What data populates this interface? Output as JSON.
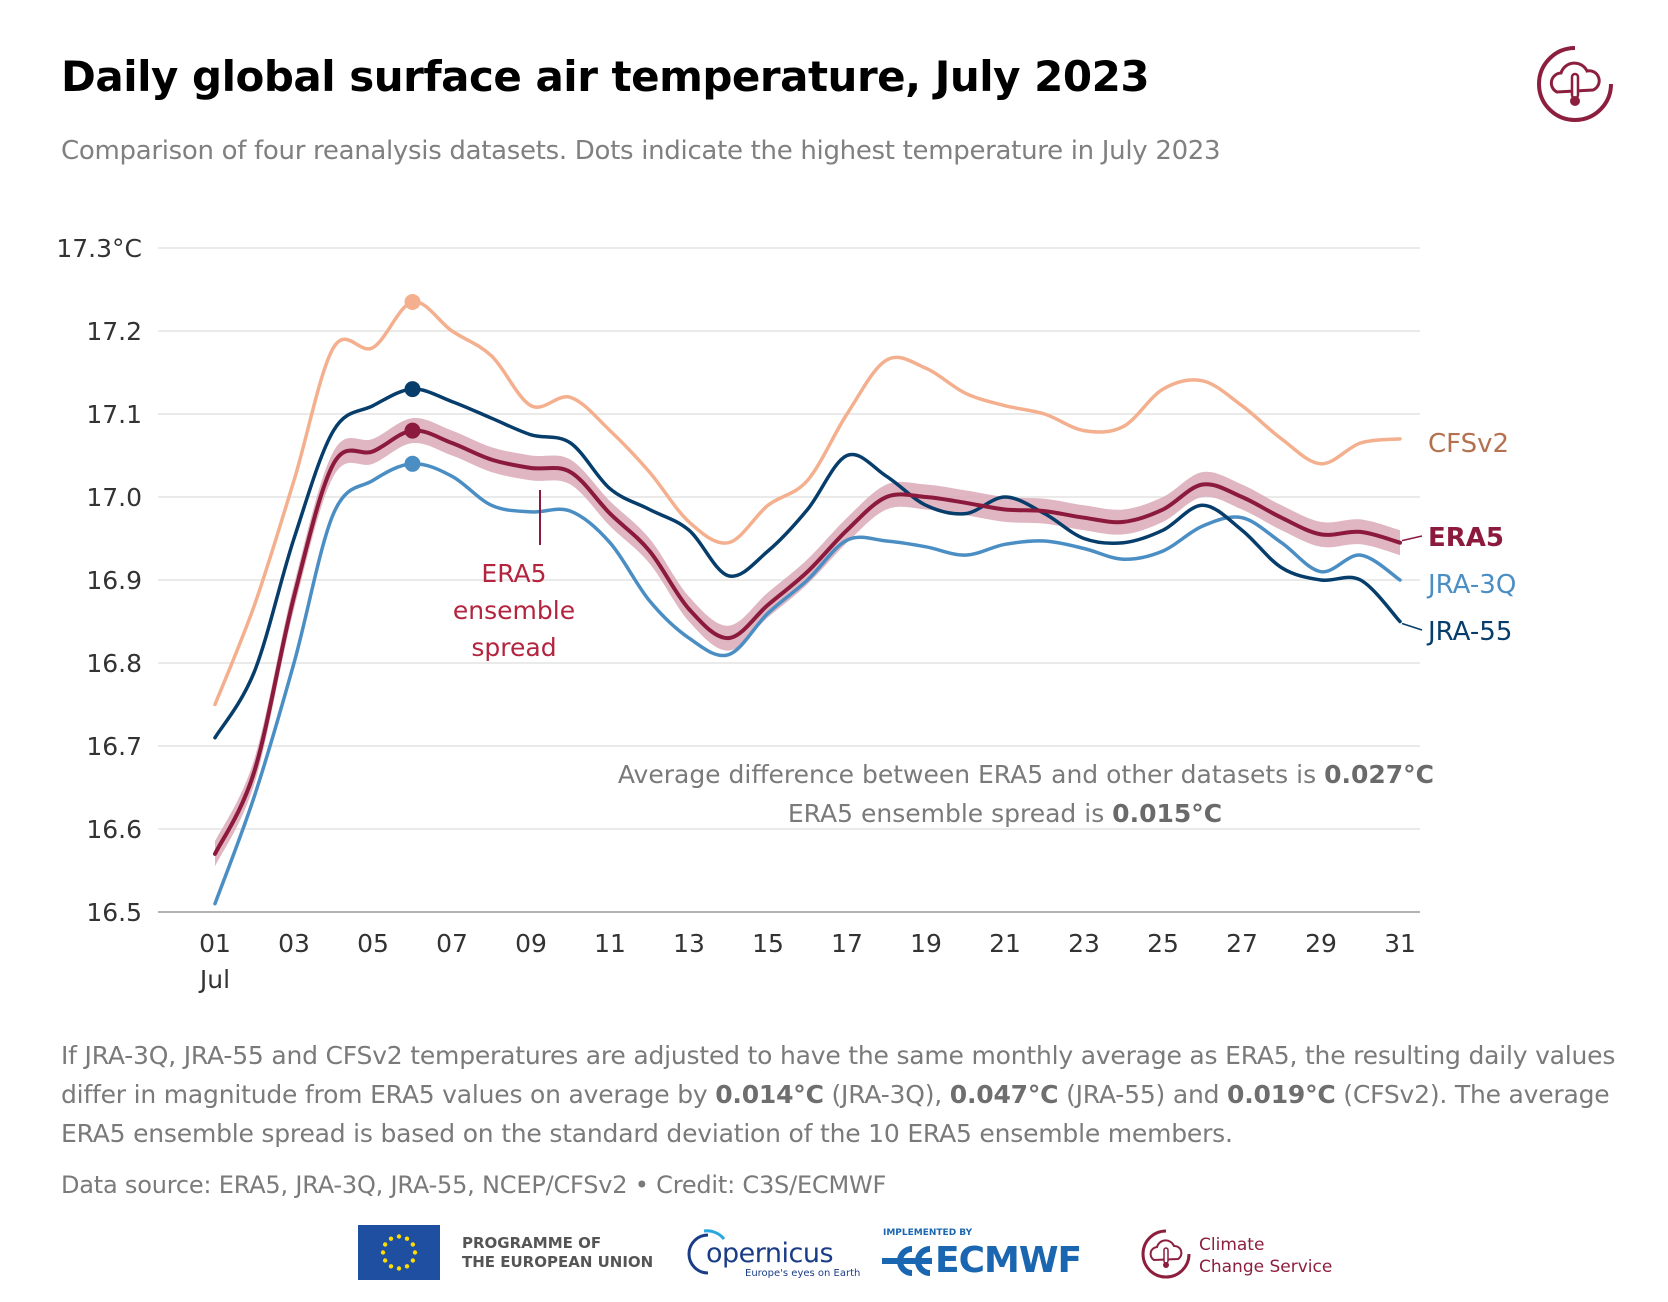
{
  "title": "Daily global surface air temperature, July 2023",
  "subtitle": "Comparison of four reanalysis datasets. Dots indicate the highest temperature in July 2023",
  "annotation": {
    "ensemble_label": [
      "ERA5",
      "ensemble",
      "spread"
    ],
    "avg_diff_prefix": "Average difference between ERA5 and other datasets is ",
    "avg_diff_value": "0.027°C",
    "spread_prefix": "ERA5 ensemble spread is ",
    "spread_value": "0.015°C"
  },
  "note": {
    "part1": "If JRA-3Q, JRA-55 and CFSv2 temperatures are adjusted to have the same monthly average as ERA5, the resulting daily values differ in magnitude from ERA5 values on average by ",
    "v1": "0.014°C",
    "part2": " (JRA-3Q), ",
    "v2": "0.047°C",
    "part3": " (JRA-55) and ",
    "v3": "0.019°C",
    "part4": " (CFSv2). The average ERA5 ensemble spread is based on the standard deviation of the 10 ERA5 ensemble members."
  },
  "source": "Data source: ERA5, JRA-3Q, JRA-55, NCEP/CFSv2 • Credit: C3S/ECMWF",
  "footer": {
    "eu": [
      "PROGRAMME OF",
      "THE EUROPEAN UNION"
    ],
    "copernicus": "opernicus",
    "copernicus_sub": "Europe's eyes on Earth",
    "ecmwf_impl": "IMPLEMENTED BY",
    "ecmwf": "ECMWF",
    "ccs": [
      "Climate",
      "Change Service"
    ]
  },
  "chart_data": {
    "type": "line",
    "title": "Daily global surface air temperature, July 2023",
    "xlabel": "",
    "ylabel": "",
    "ylim": [
      16.5,
      17.3
    ],
    "yticks": [
      16.5,
      16.6,
      16.7,
      16.8,
      16.9,
      17.0,
      17.1,
      17.2,
      17.3
    ],
    "ytick_labels": [
      "16.5",
      "16.6",
      "16.7",
      "16.8",
      "16.9",
      "17.0",
      "17.1",
      "17.2",
      "17.3°C"
    ],
    "x": [
      1,
      2,
      3,
      4,
      5,
      6,
      7,
      8,
      9,
      10,
      11,
      12,
      13,
      14,
      15,
      16,
      17,
      18,
      19,
      20,
      21,
      22,
      23,
      24,
      25,
      26,
      27,
      28,
      29,
      30,
      31
    ],
    "xtick_labels": [
      "01",
      "03",
      "05",
      "07",
      "09",
      "11",
      "13",
      "15",
      "17",
      "19",
      "21",
      "23",
      "25",
      "27",
      "29",
      "31"
    ],
    "xtick_days": [
      1,
      3,
      5,
      7,
      9,
      11,
      13,
      15,
      17,
      19,
      21,
      23,
      25,
      27,
      29,
      31
    ],
    "xtick_sublabel": "Jul",
    "grid": true,
    "series": [
      {
        "name": "CFSv2",
        "color": "#f4b08e",
        "values": [
          16.75,
          16.87,
          17.02,
          17.18,
          17.18,
          17.235,
          17.2,
          17.17,
          17.11,
          17.12,
          17.08,
          17.03,
          16.97,
          16.945,
          16.99,
          17.02,
          17.1,
          17.165,
          17.155,
          17.125,
          17.11,
          17.1,
          17.08,
          17.085,
          17.13,
          17.14,
          17.11,
          17.07,
          17.04,
          17.065,
          17.07
        ],
        "max_day": 6,
        "max_value": 17.235
      },
      {
        "name": "JRA-55",
        "color": "#063d6b",
        "values": [
          16.71,
          16.79,
          16.95,
          17.08,
          17.11,
          17.13,
          17.115,
          17.095,
          17.075,
          17.065,
          17.01,
          16.985,
          16.96,
          16.905,
          16.935,
          16.985,
          17.05,
          17.025,
          16.99,
          16.98,
          17.0,
          16.98,
          16.95,
          16.945,
          16.96,
          16.99,
          16.96,
          16.915,
          16.9,
          16.9,
          16.85
        ],
        "max_day": 6,
        "max_value": 17.13
      },
      {
        "name": "ERA5",
        "color": "#8c1a3c",
        "values": [
          16.57,
          16.67,
          16.88,
          17.04,
          17.055,
          17.08,
          17.065,
          17.045,
          17.035,
          17.03,
          16.98,
          16.935,
          16.865,
          16.83,
          16.87,
          16.91,
          16.96,
          17.0,
          17.0,
          16.993,
          16.985,
          16.983,
          16.975,
          16.97,
          16.985,
          17.015,
          17.0,
          16.975,
          16.955,
          16.958,
          16.945
        ],
        "spread": 0.015,
        "max_day": 6,
        "max_value": 17.08
      },
      {
        "name": "JRA-3Q",
        "color": "#4a8ec4",
        "values": [
          16.51,
          16.64,
          16.8,
          16.98,
          17.02,
          17.04,
          17.025,
          16.99,
          16.982,
          16.983,
          16.945,
          16.875,
          16.83,
          16.81,
          16.86,
          16.9,
          16.948,
          16.947,
          16.94,
          16.93,
          16.943,
          16.947,
          16.938,
          16.925,
          16.935,
          16.965,
          16.975,
          16.945,
          16.91,
          16.93,
          16.9
        ],
        "max_day": 6,
        "max_value": 17.04
      }
    ],
    "legend_placement": "right-end labels",
    "legend": [
      "CFSv2",
      "ERA5",
      "JRA-3Q",
      "JRA-55"
    ]
  }
}
